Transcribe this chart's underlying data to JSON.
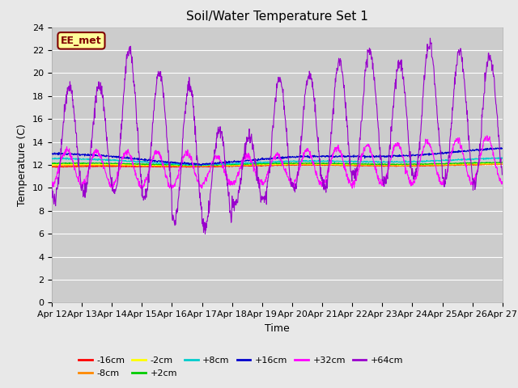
{
  "title": "Soil/Water Temperature Set 1",
  "xlabel": "Time",
  "ylabel": "Temperature (C)",
  "ylim": [
    0,
    24
  ],
  "yticks": [
    0,
    2,
    4,
    6,
    8,
    10,
    12,
    14,
    16,
    18,
    20,
    22,
    24
  ],
  "bg_color": "#e8e8e8",
  "plot_bg_color": "#cccccc",
  "grid_color": "#ffffff",
  "annotation_text": "EE_met",
  "annotation_bg": "#ffff99",
  "annotation_border": "#800000",
  "colors": {
    "-16cm": "#ff0000",
    "-8cm": "#ff8800",
    "-2cm": "#ffff00",
    "+2cm": "#00cc00",
    "+8cm": "#00cccc",
    "+16cm": "#0000cc",
    "+32cm": "#ff00ff",
    "+64cm": "#9900cc"
  },
  "xtick_labels": [
    "Apr 12",
    "Apr 13",
    "Apr 14",
    "Apr 15",
    "Apr 16",
    "Apr 17",
    "Apr 18",
    "Apr 19",
    "Apr 20",
    "Apr 21",
    "Apr 22",
    "Apr 23",
    "Apr 24",
    "Apr 25",
    "Apr 26",
    "Apr 27"
  ],
  "n_points": 1440,
  "n_days": 15
}
